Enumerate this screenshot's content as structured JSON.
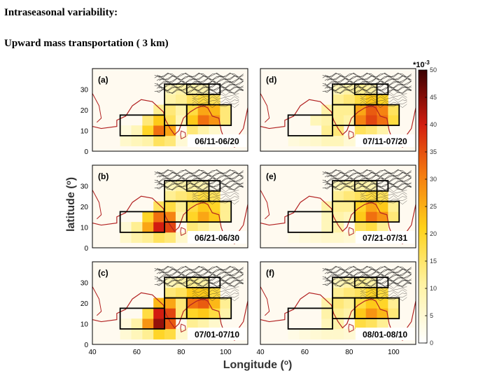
{
  "title": "Intraseasonal variability:",
  "subtitle": "Upward mass transportation ( 3 km)",
  "chart_data": {
    "type": "heatmap",
    "xlabel": "Longitude (o)",
    "xlabel_text": "Longitude (",
    "xlabel_sup": "o",
    "xlabel_close": ")",
    "ylabel_text": "latitude (",
    "ylabel_sup": "o",
    "ylabel_close": ")",
    "xlim": [
      40,
      110
    ],
    "ylim": [
      0,
      40
    ],
    "xticks": [
      "40",
      "60",
      "80",
      "100"
    ],
    "yticks": [
      "0",
      "10",
      "20",
      "30"
    ],
    "colorbar": {
      "scale": "*10",
      "scale_exp": "-3",
      "min": 0,
      "max": 50,
      "ticks": [
        "0",
        "5",
        "10",
        "15",
        "20",
        "25",
        "30",
        "35",
        "40",
        "45",
        "50"
      ]
    },
    "panels": [
      {
        "id": "a",
        "label": "(a)",
        "period": "06/11-06/20",
        "cells": [
          [
            55,
            5,
            6
          ],
          [
            60,
            5,
            8
          ],
          [
            65,
            5,
            10
          ],
          [
            70,
            5,
            16
          ],
          [
            75,
            5,
            14
          ],
          [
            80,
            5,
            5
          ],
          [
            85,
            5,
            4
          ],
          [
            90,
            5,
            4
          ],
          [
            95,
            5,
            3
          ],
          [
            55,
            10,
            4
          ],
          [
            60,
            10,
            8
          ],
          [
            65,
            10,
            20
          ],
          [
            70,
            10,
            32
          ],
          [
            75,
            10,
            26
          ],
          [
            85,
            10,
            14
          ],
          [
            90,
            10,
            10
          ],
          [
            95,
            10,
            6
          ],
          [
            65,
            15,
            14
          ],
          [
            70,
            15,
            22
          ],
          [
            75,
            15,
            16
          ],
          [
            80,
            15,
            8
          ],
          [
            85,
            15,
            22
          ],
          [
            90,
            15,
            32
          ],
          [
            95,
            15,
            28
          ],
          [
            100,
            15,
            14
          ],
          [
            70,
            20,
            12
          ],
          [
            75,
            20,
            14
          ],
          [
            80,
            20,
            10
          ],
          [
            85,
            20,
            18
          ],
          [
            90,
            20,
            26
          ],
          [
            95,
            20,
            24
          ],
          [
            100,
            20,
            14
          ],
          [
            75,
            25,
            10
          ],
          [
            80,
            25,
            12
          ],
          [
            85,
            25,
            16
          ],
          [
            90,
            25,
            18
          ],
          [
            95,
            25,
            16
          ],
          [
            75,
            30,
            8
          ],
          [
            80,
            30,
            10
          ],
          [
            85,
            30,
            10
          ],
          [
            90,
            30,
            9
          ]
        ]
      },
      {
        "id": "b",
        "label": "(b)",
        "period": "06/21-06/30",
        "cells": [
          [
            55,
            5,
            6
          ],
          [
            60,
            5,
            10
          ],
          [
            65,
            5,
            12
          ],
          [
            70,
            5,
            16
          ],
          [
            75,
            5,
            14
          ],
          [
            80,
            5,
            6
          ],
          [
            85,
            5,
            5
          ],
          [
            90,
            5,
            4
          ],
          [
            95,
            5,
            3
          ],
          [
            55,
            10,
            5
          ],
          [
            60,
            10,
            12
          ],
          [
            65,
            10,
            26
          ],
          [
            70,
            10,
            40
          ],
          [
            75,
            10,
            36
          ],
          [
            85,
            10,
            14
          ],
          [
            90,
            10,
            12
          ],
          [
            95,
            10,
            8
          ],
          [
            65,
            15,
            20
          ],
          [
            70,
            15,
            32
          ],
          [
            75,
            15,
            30
          ],
          [
            80,
            15,
            10
          ],
          [
            85,
            15,
            20
          ],
          [
            90,
            15,
            26
          ],
          [
            95,
            15,
            22
          ],
          [
            100,
            15,
            12
          ],
          [
            70,
            20,
            16
          ],
          [
            75,
            20,
            18
          ],
          [
            80,
            20,
            12
          ],
          [
            85,
            20,
            18
          ],
          [
            90,
            20,
            22
          ],
          [
            95,
            20,
            20
          ],
          [
            100,
            20,
            12
          ],
          [
            75,
            25,
            12
          ],
          [
            80,
            25,
            14
          ],
          [
            85,
            25,
            16
          ],
          [
            90,
            25,
            18
          ],
          [
            95,
            25,
            16
          ],
          [
            75,
            30,
            8
          ],
          [
            80,
            30,
            10
          ],
          [
            85,
            30,
            10
          ],
          [
            90,
            30,
            9
          ]
        ]
      },
      {
        "id": "c",
        "label": "(c)",
        "period": "07/01-07/10",
        "cells": [
          [
            55,
            5,
            5
          ],
          [
            60,
            5,
            8
          ],
          [
            65,
            5,
            12
          ],
          [
            70,
            5,
            20
          ],
          [
            75,
            5,
            18
          ],
          [
            80,
            5,
            6
          ],
          [
            85,
            5,
            5
          ],
          [
            90,
            5,
            4
          ],
          [
            95,
            5,
            3
          ],
          [
            55,
            10,
            4
          ],
          [
            60,
            10,
            10
          ],
          [
            65,
            10,
            28
          ],
          [
            70,
            10,
            44
          ],
          [
            75,
            10,
            34
          ],
          [
            85,
            10,
            12
          ],
          [
            90,
            10,
            10
          ],
          [
            95,
            10,
            6
          ],
          [
            65,
            15,
            18
          ],
          [
            70,
            15,
            40
          ],
          [
            75,
            15,
            36
          ],
          [
            80,
            15,
            14
          ],
          [
            85,
            15,
            20
          ],
          [
            90,
            15,
            22
          ],
          [
            95,
            15,
            18
          ],
          [
            100,
            15,
            10
          ],
          [
            70,
            20,
            24
          ],
          [
            75,
            20,
            26
          ],
          [
            80,
            20,
            14
          ],
          [
            85,
            20,
            32
          ],
          [
            90,
            20,
            34
          ],
          [
            95,
            20,
            24
          ],
          [
            100,
            20,
            12
          ],
          [
            75,
            25,
            14
          ],
          [
            80,
            25,
            16
          ],
          [
            85,
            25,
            22
          ],
          [
            90,
            25,
            22
          ],
          [
            95,
            25,
            18
          ],
          [
            75,
            30,
            8
          ],
          [
            80,
            30,
            10
          ],
          [
            85,
            30,
            12
          ],
          [
            90,
            30,
            10
          ]
        ]
      },
      {
        "id": "d",
        "label": "(d)",
        "period": "07/11-07/20",
        "cells": [
          [
            55,
            5,
            4
          ],
          [
            60,
            5,
            5
          ],
          [
            65,
            5,
            6
          ],
          [
            70,
            5,
            8
          ],
          [
            75,
            5,
            8
          ],
          [
            80,
            5,
            5
          ],
          [
            85,
            5,
            4
          ],
          [
            90,
            5,
            4
          ],
          [
            95,
            5,
            3
          ],
          [
            70,
            10,
            12
          ],
          [
            75,
            10,
            14
          ],
          [
            85,
            10,
            16
          ],
          [
            90,
            10,
            14
          ],
          [
            95,
            10,
            10
          ],
          [
            65,
            15,
            8
          ],
          [
            70,
            15,
            10
          ],
          [
            75,
            15,
            12
          ],
          [
            80,
            15,
            10
          ],
          [
            85,
            15,
            30
          ],
          [
            90,
            15,
            36
          ],
          [
            95,
            15,
            32
          ],
          [
            100,
            15,
            18
          ],
          [
            70,
            20,
            10
          ],
          [
            75,
            20,
            12
          ],
          [
            80,
            20,
            12
          ],
          [
            85,
            20,
            26
          ],
          [
            90,
            20,
            34
          ],
          [
            95,
            20,
            30
          ],
          [
            100,
            20,
            16
          ],
          [
            75,
            25,
            12
          ],
          [
            80,
            25,
            14
          ],
          [
            85,
            25,
            18
          ],
          [
            90,
            25,
            22
          ],
          [
            95,
            25,
            20
          ],
          [
            75,
            30,
            8
          ],
          [
            80,
            30,
            10
          ],
          [
            85,
            30,
            12
          ],
          [
            90,
            30,
            10
          ]
        ]
      },
      {
        "id": "e",
        "label": "(e)",
        "period": "07/21-07/31",
        "cells": [
          [
            55,
            5,
            3
          ],
          [
            60,
            5,
            4
          ],
          [
            65,
            5,
            5
          ],
          [
            70,
            5,
            6
          ],
          [
            75,
            5,
            6
          ],
          [
            80,
            5,
            5
          ],
          [
            85,
            5,
            4
          ],
          [
            90,
            5,
            4
          ],
          [
            95,
            5,
            3
          ],
          [
            70,
            10,
            8
          ],
          [
            75,
            10,
            10
          ],
          [
            85,
            10,
            16
          ],
          [
            90,
            10,
            18
          ],
          [
            95,
            10,
            12
          ],
          [
            70,
            15,
            8
          ],
          [
            75,
            15,
            10
          ],
          [
            80,
            15,
            8
          ],
          [
            85,
            15,
            22
          ],
          [
            90,
            15,
            32
          ],
          [
            95,
            15,
            28
          ],
          [
            100,
            15,
            14
          ],
          [
            70,
            20,
            10
          ],
          [
            75,
            20,
            12
          ],
          [
            80,
            20,
            12
          ],
          [
            85,
            20,
            20
          ],
          [
            90,
            20,
            26
          ],
          [
            95,
            20,
            22
          ],
          [
            100,
            20,
            12
          ],
          [
            75,
            25,
            12
          ],
          [
            80,
            25,
            14
          ],
          [
            85,
            25,
            16
          ],
          [
            90,
            25,
            18
          ],
          [
            95,
            25,
            16
          ],
          [
            75,
            30,
            8
          ],
          [
            80,
            30,
            10
          ],
          [
            85,
            30,
            10
          ],
          [
            90,
            30,
            9
          ]
        ]
      },
      {
        "id": "f",
        "label": "(f)",
        "period": "08/01-08/10",
        "cells": [
          [
            55,
            5,
            3
          ],
          [
            60,
            5,
            4
          ],
          [
            65,
            5,
            5
          ],
          [
            70,
            5,
            6
          ],
          [
            75,
            5,
            6
          ],
          [
            80,
            5,
            5
          ],
          [
            85,
            5,
            4
          ],
          [
            90,
            5,
            4
          ],
          [
            95,
            5,
            3
          ],
          [
            70,
            10,
            8
          ],
          [
            75,
            10,
            10
          ],
          [
            85,
            10,
            18
          ],
          [
            90,
            10,
            16
          ],
          [
            95,
            10,
            12
          ],
          [
            70,
            15,
            10
          ],
          [
            75,
            15,
            12
          ],
          [
            80,
            15,
            10
          ],
          [
            85,
            15,
            22
          ],
          [
            90,
            15,
            28
          ],
          [
            95,
            15,
            24
          ],
          [
            100,
            15,
            14
          ],
          [
            70,
            20,
            10
          ],
          [
            75,
            20,
            14
          ],
          [
            80,
            20,
            12
          ],
          [
            85,
            20,
            18
          ],
          [
            90,
            20,
            22
          ],
          [
            95,
            20,
            20
          ],
          [
            100,
            20,
            12
          ],
          [
            75,
            25,
            12
          ],
          [
            80,
            25,
            14
          ],
          [
            85,
            25,
            16
          ],
          [
            90,
            25,
            20
          ],
          [
            95,
            25,
            18
          ],
          [
            75,
            30,
            8
          ],
          [
            80,
            30,
            10
          ],
          [
            85,
            30,
            12
          ],
          [
            90,
            30,
            10
          ]
        ]
      }
    ],
    "boxes": [
      {
        "name": "arabian-sea-box",
        "lon": [
          52.5,
          72.5
        ],
        "lat": [
          7.5,
          17.5
        ]
      },
      {
        "name": "indian-west-box",
        "lon": [
          72.5,
          82.5
        ],
        "lat": [
          12.5,
          22.5
        ]
      },
      {
        "name": "bay-of-bengal-box",
        "lon": [
          82.5,
          102.5
        ],
        "lat": [
          12.5,
          22.5
        ]
      },
      {
        "name": "indo-gangetic-box",
        "lon": [
          72.5,
          92.5
        ],
        "lat": [
          22.5,
          32.5
        ]
      },
      {
        "name": "tibet-box",
        "lon": [
          82.5,
          97.5
        ],
        "lat": [
          27.5,
          32.5
        ]
      }
    ]
  }
}
